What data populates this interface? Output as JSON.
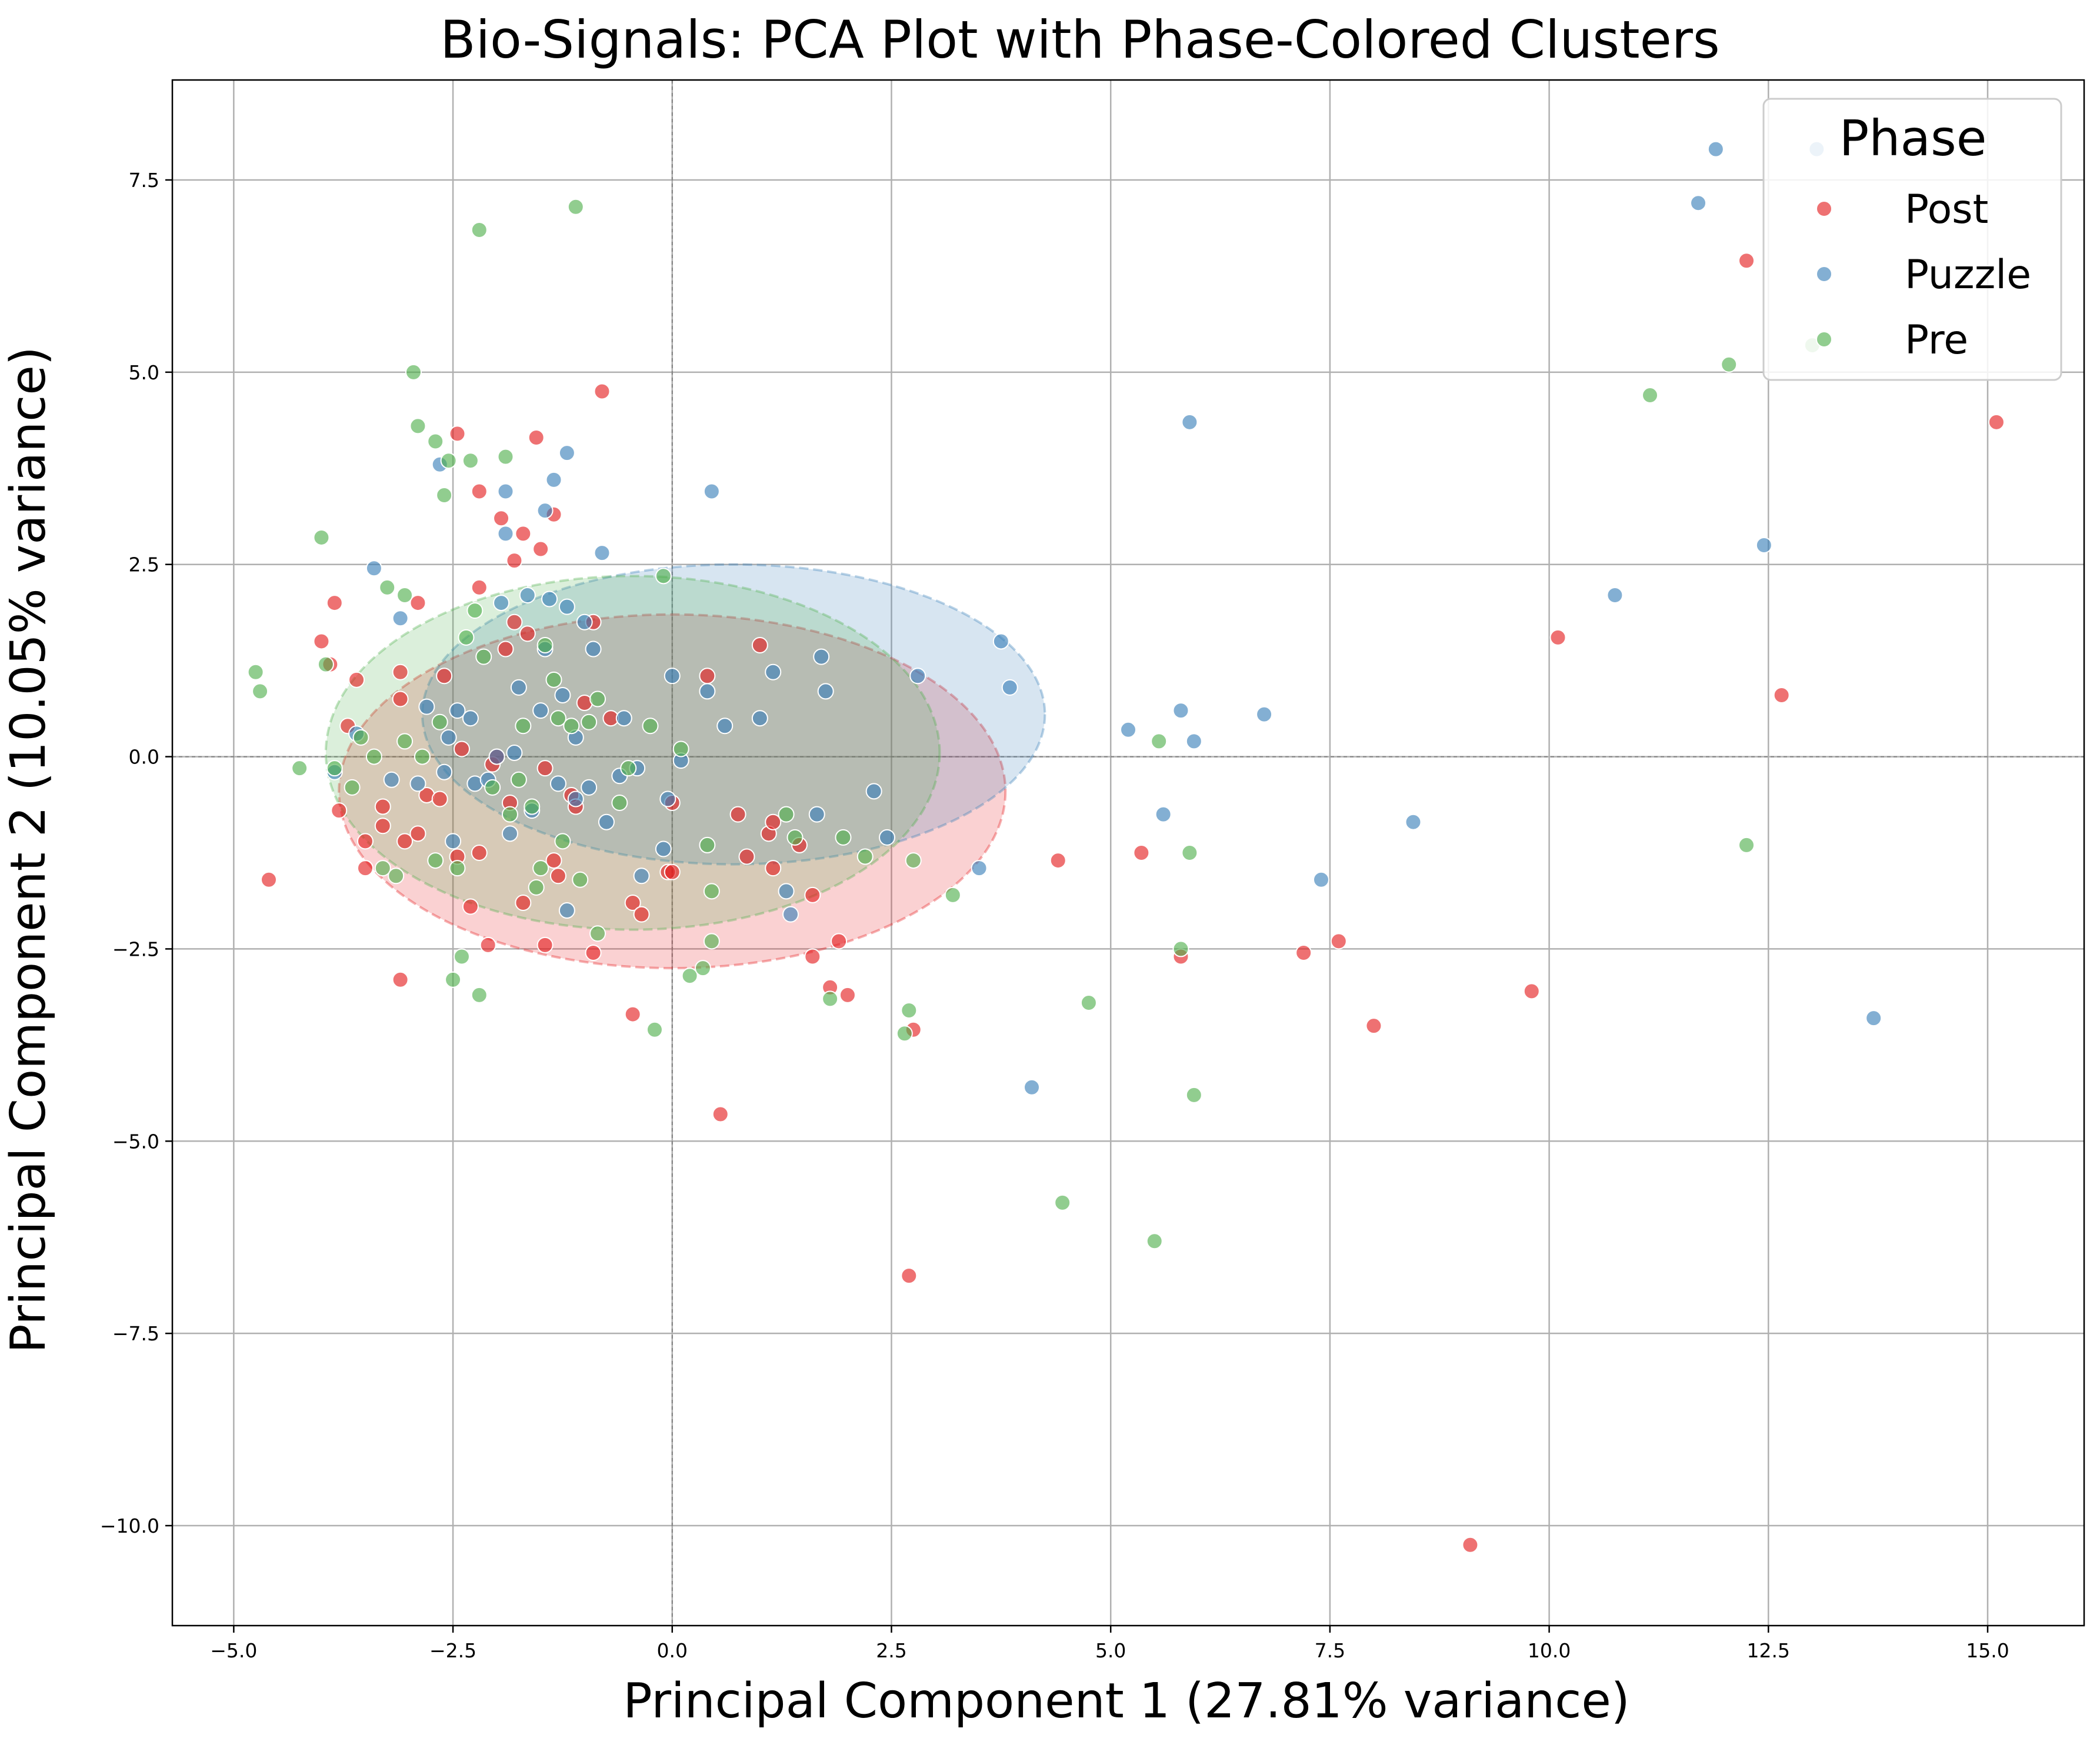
{
  "chart_data": {
    "type": "scatter",
    "title": "Bio-Signals: PCA Plot with Phase-Colored Clusters",
    "xlabel": "Principal Component 1 (27.81% variance)",
    "ylabel": "Principal Component 2 (10.05% variance)",
    "xlim": [
      -5.7,
      16.1
    ],
    "ylim": [
      -11.3,
      8.8
    ],
    "xticks": [
      -5.0,
      -2.5,
      0.0,
      2.5,
      5.0,
      7.5,
      10.0,
      12.5,
      15.0
    ],
    "yticks": [
      -10.0,
      -7.5,
      -5.0,
      -2.5,
      0.0,
      2.5,
      5.0,
      7.5
    ],
    "xtick_labels": [
      "−5.0",
      "−2.5",
      "0.0",
      "2.5",
      "5.0",
      "7.5",
      "10.0",
      "12.5",
      "15.0"
    ],
    "ytick_labels": [
      "−10.0",
      "−7.5",
      "−5.0",
      "−2.5",
      "0.0",
      "2.5",
      "5.0",
      "7.5"
    ],
    "grid": true,
    "reference_lines": {
      "x": 0,
      "y": 0,
      "style": "dashed"
    },
    "legend": {
      "title": "Phase",
      "position": "top-right"
    },
    "series": [
      {
        "name": "Post",
        "color": "#e41a1c",
        "ellipse": {
          "cx": 0.0,
          "cy": -0.45,
          "rx": 3.8,
          "ry": 2.3
        },
        "points": [
          [
            -4.6,
            -1.6
          ],
          [
            -4.0,
            1.5
          ],
          [
            -3.9,
            1.2
          ],
          [
            -3.85,
            2.0
          ],
          [
            -3.8,
            -0.7
          ],
          [
            -3.7,
            0.4
          ],
          [
            -3.6,
            1.0
          ],
          [
            -3.5,
            -1.45
          ],
          [
            -3.5,
            -1.1
          ],
          [
            -3.3,
            -0.9
          ],
          [
            -3.3,
            -0.65
          ],
          [
            -3.1,
            1.1
          ],
          [
            -3.1,
            0.75
          ],
          [
            -3.05,
            -1.1
          ],
          [
            -3.1,
            -2.9
          ],
          [
            -2.9,
            2.0
          ],
          [
            -2.9,
            -1.0
          ],
          [
            -2.8,
            -0.5
          ],
          [
            -2.65,
            -0.55
          ],
          [
            -2.6,
            1.05
          ],
          [
            -2.45,
            -1.3
          ],
          [
            -2.45,
            4.2
          ],
          [
            -2.4,
            0.1
          ],
          [
            -2.3,
            -1.95
          ],
          [
            -2.2,
            2.2
          ],
          [
            -2.2,
            3.45
          ],
          [
            -2.2,
            -1.25
          ],
          [
            -2.1,
            -2.45
          ],
          [
            -2.05,
            -0.1
          ],
          [
            -2.0,
            0.0
          ],
          [
            -1.95,
            3.1
          ],
          [
            -1.9,
            1.4
          ],
          [
            -1.85,
            -0.6
          ],
          [
            -1.8,
            2.55
          ],
          [
            -1.8,
            1.75
          ],
          [
            -1.7,
            2.9
          ],
          [
            -1.7,
            -1.9
          ],
          [
            -1.65,
            1.6
          ],
          [
            -1.55,
            4.15
          ],
          [
            -1.5,
            2.7
          ],
          [
            -1.45,
            -0.15
          ],
          [
            -1.45,
            -2.45
          ],
          [
            -1.35,
            3.15
          ],
          [
            -1.35,
            -1.35
          ],
          [
            -1.3,
            -1.55
          ],
          [
            -1.15,
            -0.5
          ],
          [
            -1.1,
            -0.65
          ],
          [
            -1.0,
            0.7
          ],
          [
            -0.9,
            1.75
          ],
          [
            -0.9,
            -2.55
          ],
          [
            -0.8,
            4.75
          ],
          [
            -0.7,
            0.5
          ],
          [
            -0.45,
            -1.9
          ],
          [
            -0.45,
            -3.35
          ],
          [
            -0.35,
            -2.05
          ],
          [
            -0.05,
            -1.5
          ],
          [
            0.0,
            -1.5
          ],
          [
            0.0,
            -0.6
          ],
          [
            0.4,
            1.05
          ],
          [
            0.55,
            -4.65
          ],
          [
            0.75,
            -0.75
          ],
          [
            0.85,
            -1.3
          ],
          [
            1.0,
            1.45
          ],
          [
            1.1,
            -1.0
          ],
          [
            1.15,
            -0.85
          ],
          [
            1.15,
            -1.45
          ],
          [
            1.45,
            -1.15
          ],
          [
            1.6,
            -1.8
          ],
          [
            1.6,
            -2.6
          ],
          [
            1.8,
            -3.0
          ],
          [
            1.9,
            -2.4
          ],
          [
            2.0,
            -3.1
          ],
          [
            2.75,
            -3.55
          ],
          [
            2.7,
            -6.75
          ],
          [
            4.4,
            -1.35
          ],
          [
            5.35,
            -1.25
          ],
          [
            5.8,
            -2.6
          ],
          [
            7.2,
            -2.55
          ],
          [
            7.6,
            -2.4
          ],
          [
            8.0,
            -3.5
          ],
          [
            9.1,
            -10.25
          ],
          [
            9.8,
            -3.05
          ],
          [
            10.1,
            1.55
          ],
          [
            12.25,
            6.45
          ],
          [
            12.65,
            0.8
          ],
          [
            15.1,
            4.35
          ]
        ]
      },
      {
        "name": "Puzzle",
        "color": "#377eb8",
        "ellipse": {
          "cx": 0.7,
          "cy": 0.55,
          "rx": 3.55,
          "ry": 1.95
        },
        "points": [
          [
            -3.85,
            -0.2
          ],
          [
            -3.6,
            0.3
          ],
          [
            -3.4,
            2.45
          ],
          [
            -3.2,
            -0.3
          ],
          [
            -3.1,
            1.8
          ],
          [
            -2.9,
            -0.35
          ],
          [
            -2.8,
            0.65
          ],
          [
            -2.65,
            3.8
          ],
          [
            -2.6,
            -0.2
          ],
          [
            -2.55,
            0.25
          ],
          [
            -2.5,
            -1.1
          ],
          [
            -2.45,
            0.6
          ],
          [
            -2.3,
            0.5
          ],
          [
            -2.25,
            -0.35
          ],
          [
            -2.1,
            -0.3
          ],
          [
            -2.0,
            0.0
          ],
          [
            -1.95,
            2.0
          ],
          [
            -1.9,
            3.45
          ],
          [
            -1.9,
            2.9
          ],
          [
            -1.85,
            -1.0
          ],
          [
            -1.8,
            0.05
          ],
          [
            -1.75,
            0.9
          ],
          [
            -1.65,
            2.1
          ],
          [
            -1.6,
            -0.7
          ],
          [
            -1.5,
            0.6
          ],
          [
            -1.45,
            1.4
          ],
          [
            -1.45,
            3.2
          ],
          [
            -1.4,
            2.05
          ],
          [
            -1.35,
            3.6
          ],
          [
            -1.3,
            -0.35
          ],
          [
            -1.25,
            0.8
          ],
          [
            -1.2,
            -2.0
          ],
          [
            -1.2,
            1.95
          ],
          [
            -1.2,
            3.95
          ],
          [
            -1.1,
            0.25
          ],
          [
            -1.1,
            -0.55
          ],
          [
            -1.0,
            1.75
          ],
          [
            -0.95,
            -0.4
          ],
          [
            -0.9,
            1.4
          ],
          [
            -0.8,
            2.65
          ],
          [
            -0.75,
            -0.85
          ],
          [
            -0.6,
            -0.25
          ],
          [
            -0.55,
            0.5
          ],
          [
            -0.4,
            -0.15
          ],
          [
            -0.35,
            -1.55
          ],
          [
            -0.1,
            -1.2
          ],
          [
            -0.05,
            -0.55
          ],
          [
            0.0,
            1.05
          ],
          [
            0.1,
            -0.05
          ],
          [
            0.4,
            0.85
          ],
          [
            0.45,
            3.45
          ],
          [
            0.6,
            0.4
          ],
          [
            1.0,
            0.5
          ],
          [
            1.15,
            1.1
          ],
          [
            1.3,
            -1.75
          ],
          [
            1.35,
            -2.05
          ],
          [
            1.65,
            -0.75
          ],
          [
            1.7,
            1.3
          ],
          [
            1.75,
            0.85
          ],
          [
            2.3,
            -0.45
          ],
          [
            2.45,
            -1.05
          ],
          [
            2.8,
            1.05
          ],
          [
            3.5,
            -1.45
          ],
          [
            3.75,
            1.5
          ],
          [
            3.85,
            0.9
          ],
          [
            4.1,
            -4.3
          ],
          [
            5.2,
            0.35
          ],
          [
            5.6,
            -0.75
          ],
          [
            5.8,
            0.6
          ],
          [
            5.9,
            4.35
          ],
          [
            5.95,
            0.2
          ],
          [
            6.75,
            0.55
          ],
          [
            7.4,
            -1.6
          ],
          [
            8.45,
            -0.85
          ],
          [
            10.75,
            2.1
          ],
          [
            11.7,
            7.2
          ],
          [
            11.9,
            7.9
          ],
          [
            12.45,
            2.75
          ],
          [
            13.05,
            7.9
          ],
          [
            13.7,
            -3.4
          ]
        ]
      },
      {
        "name": "Pre",
        "color": "#4daf4a",
        "ellipse": {
          "cx": -0.45,
          "cy": 0.05,
          "rx": 3.5,
          "ry": 2.3
        },
        "points": [
          [
            -4.75,
            1.1
          ],
          [
            -4.7,
            0.85
          ],
          [
            -4.25,
            -0.15
          ],
          [
            -4.0,
            2.85
          ],
          [
            -3.95,
            1.2
          ],
          [
            -3.85,
            -0.15
          ],
          [
            -3.65,
            -0.4
          ],
          [
            -3.55,
            0.25
          ],
          [
            -3.4,
            -0.0
          ],
          [
            -3.3,
            -1.45
          ],
          [
            -3.25,
            2.2
          ],
          [
            -3.15,
            -1.55
          ],
          [
            -3.05,
            2.1
          ],
          [
            -3.05,
            0.2
          ],
          [
            -2.95,
            5.0
          ],
          [
            -2.9,
            4.3
          ],
          [
            -2.85,
            0.0
          ],
          [
            -2.7,
            4.1
          ],
          [
            -2.7,
            -1.35
          ],
          [
            -2.65,
            0.45
          ],
          [
            -2.6,
            3.4
          ],
          [
            -2.55,
            3.85
          ],
          [
            -2.5,
            -2.9
          ],
          [
            -2.45,
            -1.45
          ],
          [
            -2.4,
            -2.6
          ],
          [
            -2.35,
            1.55
          ],
          [
            -2.3,
            3.85
          ],
          [
            -2.25,
            1.9
          ],
          [
            -2.2,
            6.85
          ],
          [
            -2.2,
            -3.1
          ],
          [
            -2.15,
            1.3
          ],
          [
            -2.05,
            -0.4
          ],
          [
            -1.9,
            3.9
          ],
          [
            -1.85,
            -0.75
          ],
          [
            -1.75,
            -0.3
          ],
          [
            -1.7,
            0.4
          ],
          [
            -1.6,
            -0.65
          ],
          [
            -1.55,
            -1.7
          ],
          [
            -1.5,
            -1.45
          ],
          [
            -1.45,
            1.45
          ],
          [
            -1.35,
            1.0
          ],
          [
            -1.3,
            0.5
          ],
          [
            -1.25,
            -1.1
          ],
          [
            -1.15,
            0.4
          ],
          [
            -1.1,
            7.15
          ],
          [
            -1.05,
            -1.6
          ],
          [
            -0.95,
            0.45
          ],
          [
            -0.85,
            0.75
          ],
          [
            -0.85,
            -2.3
          ],
          [
            -0.6,
            -0.6
          ],
          [
            -0.5,
            -0.15
          ],
          [
            -0.25,
            0.4
          ],
          [
            -0.2,
            -3.55
          ],
          [
            -0.1,
            2.35
          ],
          [
            0.1,
            0.1
          ],
          [
            0.2,
            -2.85
          ],
          [
            0.35,
            -2.75
          ],
          [
            0.4,
            -1.15
          ],
          [
            0.45,
            -2.4
          ],
          [
            0.45,
            -1.75
          ],
          [
            1.3,
            -0.75
          ],
          [
            1.4,
            -1.05
          ],
          [
            1.8,
            -3.15
          ],
          [
            1.95,
            -1.05
          ],
          [
            2.2,
            -1.3
          ],
          [
            2.65,
            -3.6
          ],
          [
            2.7,
            -3.3
          ],
          [
            2.75,
            -1.35
          ],
          [
            3.2,
            -1.8
          ],
          [
            4.45,
            -5.8
          ],
          [
            4.75,
            -3.2
          ],
          [
            5.5,
            -6.3
          ],
          [
            5.55,
            0.2
          ],
          [
            5.8,
            -2.5
          ],
          [
            5.9,
            -1.25
          ],
          [
            5.95,
            -4.4
          ],
          [
            11.15,
            4.7
          ],
          [
            12.05,
            5.1
          ],
          [
            12.25,
            -1.15
          ],
          [
            13.0,
            5.35
          ]
        ]
      }
    ]
  }
}
